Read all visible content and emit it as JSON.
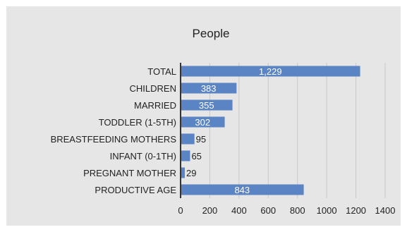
{
  "chart_data": {
    "type": "bar",
    "orientation": "horizontal",
    "title": "People",
    "xlabel": "",
    "ylabel": "",
    "categories": [
      "TOTAL",
      "CHILDREN",
      "MARRIED",
      "TODDLER (1-5TH)",
      "BREASTFEEDING MOTHERS",
      "INFANT (0-1TH)",
      "PREGNANT MOTHER",
      "PRODUCTIVE AGE"
    ],
    "values": [
      1229,
      383,
      355,
      302,
      95,
      65,
      29,
      843
    ],
    "data_labels": [
      "1,229",
      "383",
      "355",
      "302",
      "95",
      "65",
      "29",
      "843"
    ],
    "xlim": [
      0,
      1400
    ],
    "xticks": [
      0,
      200,
      400,
      600,
      800,
      1000,
      1200,
      1400
    ],
    "xtick_labels": [
      "0",
      "200",
      "400",
      "600",
      "800",
      "1000",
      "1200",
      "1400"
    ],
    "grid": "vertical",
    "legend": "none",
    "colors": {
      "bar": "#5b84c4",
      "background": "#e6e6e6",
      "grid": "#c8c8c8",
      "axis": "#333333",
      "text": "#222222",
      "label_inside": "#ffffff"
    }
  }
}
